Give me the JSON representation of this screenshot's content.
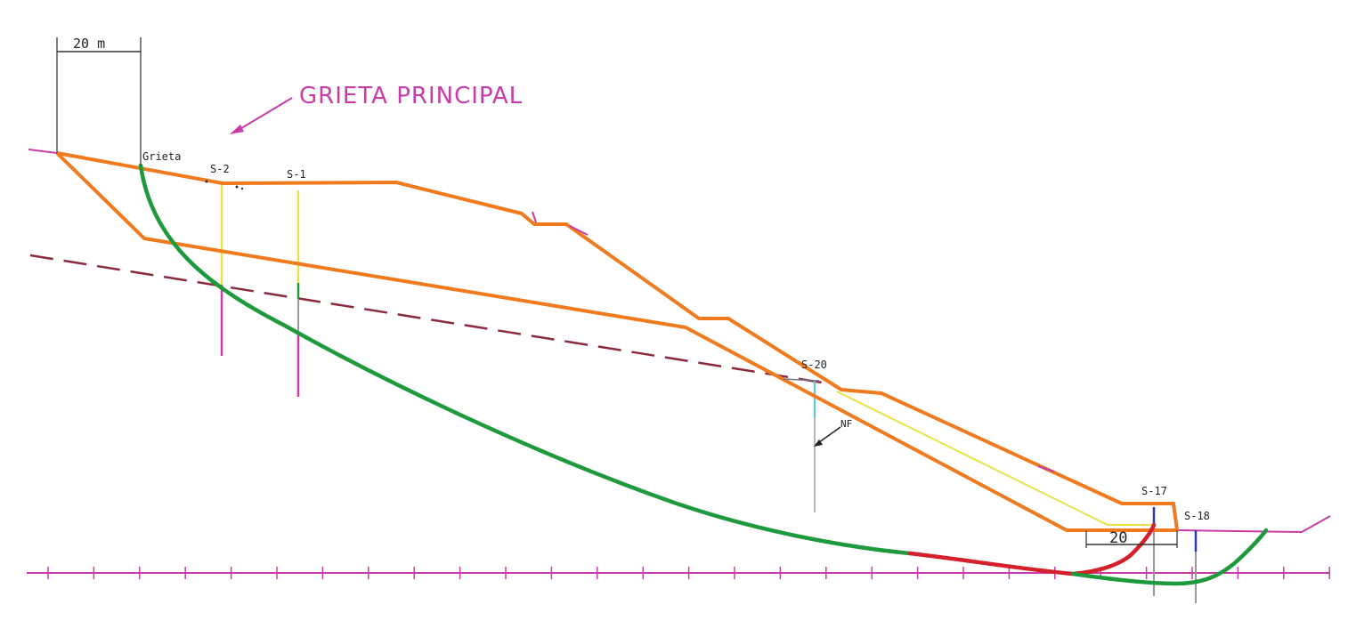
{
  "colors": {
    "slide_body": "#f07a1e",
    "failure_surface": "#1e9a3c",
    "failure_surface_toe": "#d4202a",
    "water_table": "#8a2a3c",
    "borehole": "#e8e24a",
    "borehole_deep": "#c83ca8",
    "annotation": "#c83ca8",
    "dimension": "#333333",
    "grid": "#c83ca8"
  },
  "labels": {
    "title": "GRIETA PRINCIPAL",
    "scale_top": "20 m",
    "scale_bottom": "20",
    "crack": "Grieta",
    "water_level": "NF",
    "boreholes": [
      "S-2",
      "S-1",
      "S-20",
      "S-17",
      "S-18"
    ]
  },
  "icons": {
    "title_arrow": "arrow-down-left-icon",
    "nf_arrow": "arrow-down-left-icon"
  }
}
